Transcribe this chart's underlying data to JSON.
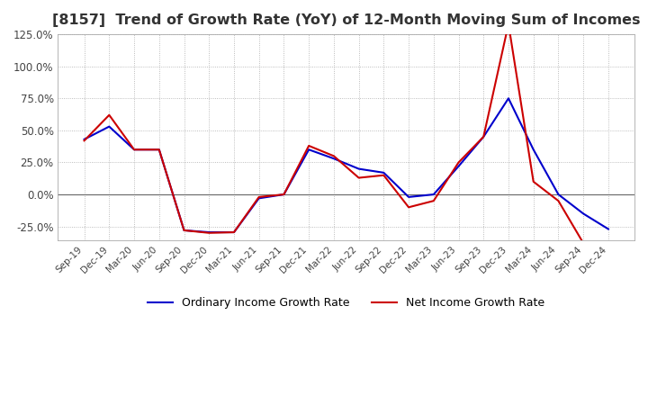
{
  "title": "[8157]  Trend of Growth Rate (YoY) of 12-Month Moving Sum of Incomes",
  "title_fontsize": 11.5,
  "title_color": "#333333",
  "background_color": "#ffffff",
  "plot_bg_color": "#ffffff",
  "grid_color": "#aaaaaa",
  "ordinary_color": "#0000cc",
  "net_color": "#cc0000",
  "legend_ordinary": "Ordinary Income Growth Rate",
  "legend_net": "Net Income Growth Rate",
  "x_labels": [
    "Sep-19",
    "Dec-19",
    "Mar-20",
    "Jun-20",
    "Sep-20",
    "Dec-20",
    "Mar-21",
    "Jun-21",
    "Sep-21",
    "Dec-21",
    "Mar-22",
    "Jun-22",
    "Sep-22",
    "Dec-22",
    "Mar-23",
    "Jun-23",
    "Sep-23",
    "Dec-23",
    "Mar-24",
    "Jun-24",
    "Sep-24",
    "Dec-24"
  ],
  "ordinary": [
    0.43,
    0.53,
    0.35,
    0.35,
    -0.28,
    -0.295,
    -0.295,
    -0.03,
    0.0,
    0.35,
    0.28,
    0.2,
    0.17,
    -0.02,
    0.0,
    0.22,
    0.45,
    0.75,
    0.35,
    0.0,
    -0.15,
    -0.27
  ],
  "net": [
    0.42,
    0.62,
    0.35,
    0.35,
    -0.28,
    -0.3,
    -0.295,
    -0.02,
    0.0,
    0.38,
    0.3,
    0.13,
    0.15,
    -0.1,
    -0.05,
    0.25,
    0.45,
    1.33,
    0.1,
    -0.05,
    -0.38,
    -0.4
  ],
  "ylim_min": -0.36,
  "ylim_max": 0.155,
  "yticks": [
    -0.25,
    0.0,
    0.25,
    0.5,
    0.75,
    1.0,
    1.25
  ]
}
